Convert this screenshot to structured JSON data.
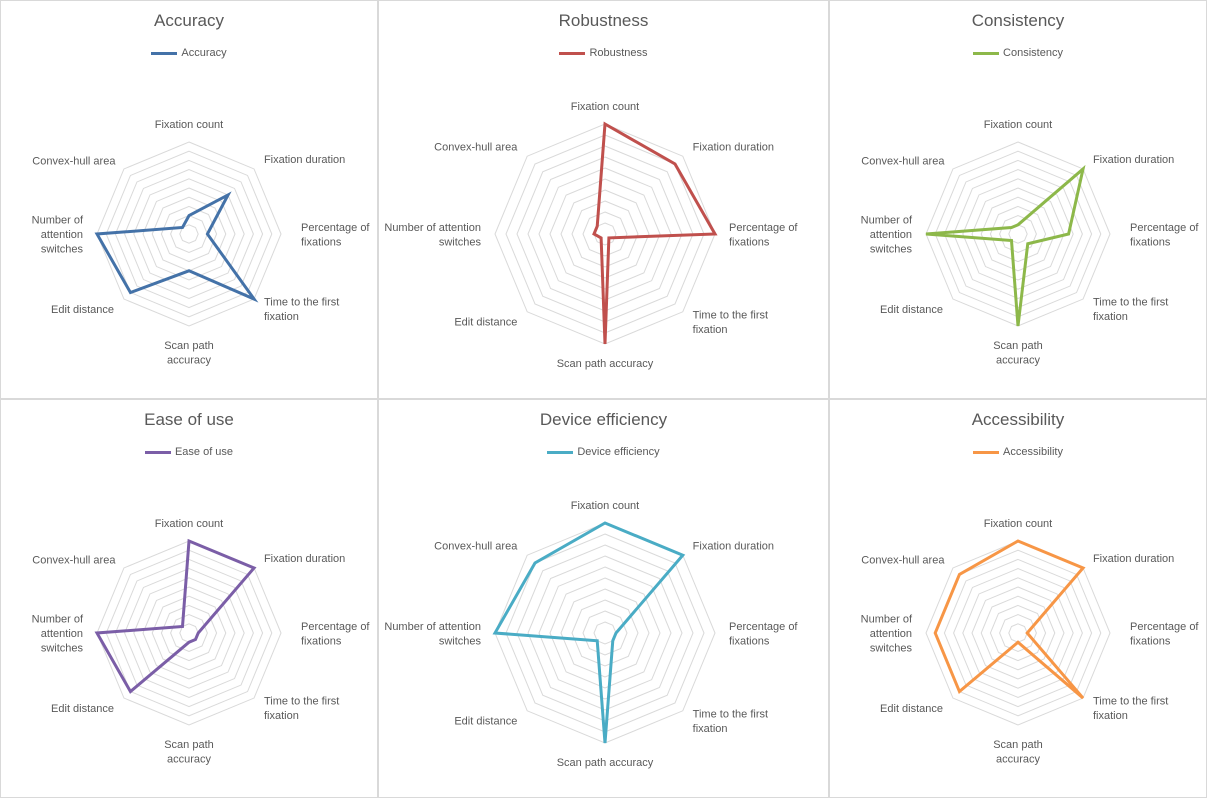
{
  "chart_data": [
    {
      "type": "radar",
      "title": "Accuracy",
      "categories": [
        "Fixation count",
        "Fixation duration",
        "Percentage of fixations",
        "Time to the first fixation",
        "Scan path accuracy",
        "Edit distance",
        "Number of attention switches",
        "Convex-hull area"
      ],
      "series": [
        {
          "name": "Accuracy",
          "values": [
            0.2,
            0.6,
            0.2,
            1.0,
            0.4,
            0.9,
            1.0,
            0.1
          ]
        }
      ],
      "rlim": [
        0,
        1
      ],
      "color": "#4472a8",
      "legend_position": "top"
    },
    {
      "type": "radar",
      "title": "Robustness",
      "categories": [
        "Fixation count",
        "Fixation duration",
        "Percentage of fixations",
        "Time to the first fixation",
        "Scan path accuracy",
        "Edit distance",
        "Number of attention switches",
        "Convex-hull area"
      ],
      "series": [
        {
          "name": "Robustness",
          "values": [
            1.0,
            0.9,
            1.0,
            0.05,
            1.0,
            0.05,
            0.1,
            0.1
          ]
        }
      ],
      "rlim": [
        0,
        1
      ],
      "color": "#c0504d",
      "legend_position": "top"
    },
    {
      "type": "radar",
      "title": "Consistency",
      "categories": [
        "Fixation count",
        "Fixation duration",
        "Percentage of fixations",
        "Time to the first fixation",
        "Scan path accuracy",
        "Edit distance",
        "Number of attention switches",
        "Convex-hull area"
      ],
      "series": [
        {
          "name": "Consistency",
          "values": [
            0.1,
            1.0,
            0.55,
            0.15,
            1.0,
            0.1,
            1.0,
            0.1
          ]
        }
      ],
      "rlim": [
        0,
        1
      ],
      "color": "#8db84a",
      "legend_position": "top"
    },
    {
      "type": "radar",
      "title": "Ease of use",
      "categories": [
        "Fixation count",
        "Fixation duration",
        "Percentage of fixations",
        "Time to the first fixation",
        "Scan path accuracy",
        "Edit distance",
        "Number of attention switches",
        "Convex-hull area"
      ],
      "series": [
        {
          "name": "Ease of use",
          "values": [
            1.0,
            1.0,
            0.1,
            0.1,
            0.1,
            0.9,
            1.0,
            0.1
          ]
        }
      ],
      "rlim": [
        0,
        1
      ],
      "color": "#7b5ea7",
      "legend_position": "top"
    },
    {
      "type": "radar",
      "title": "Device efficiency",
      "categories": [
        "Fixation count",
        "Fixation duration",
        "Percentage of fixations",
        "Time to the first fixation",
        "Scan path accuracy",
        "Edit distance",
        "Number of attention switches",
        "Convex-hull area"
      ],
      "series": [
        {
          "name": "Device efficiency",
          "values": [
            1.0,
            1.0,
            0.1,
            0.1,
            1.0,
            0.1,
            1.0,
            0.9
          ]
        }
      ],
      "rlim": [
        0,
        1
      ],
      "color": "#4aacc5",
      "legend_position": "top"
    },
    {
      "type": "radar",
      "title": "Accessibility",
      "categories": [
        "Fixation count",
        "Fixation duration",
        "Percentage of fixations",
        "Time to the first fixation",
        "Scan path accuracy",
        "Edit distance",
        "Number of attention switches",
        "Convex-hull area"
      ],
      "series": [
        {
          "name": "Accessibility",
          "values": [
            1.0,
            1.0,
            0.1,
            1.0,
            0.1,
            0.9,
            0.9,
            0.9
          ]
        }
      ],
      "rlim": [
        0,
        1
      ],
      "color": "#f79646",
      "legend_position": "top"
    }
  ]
}
